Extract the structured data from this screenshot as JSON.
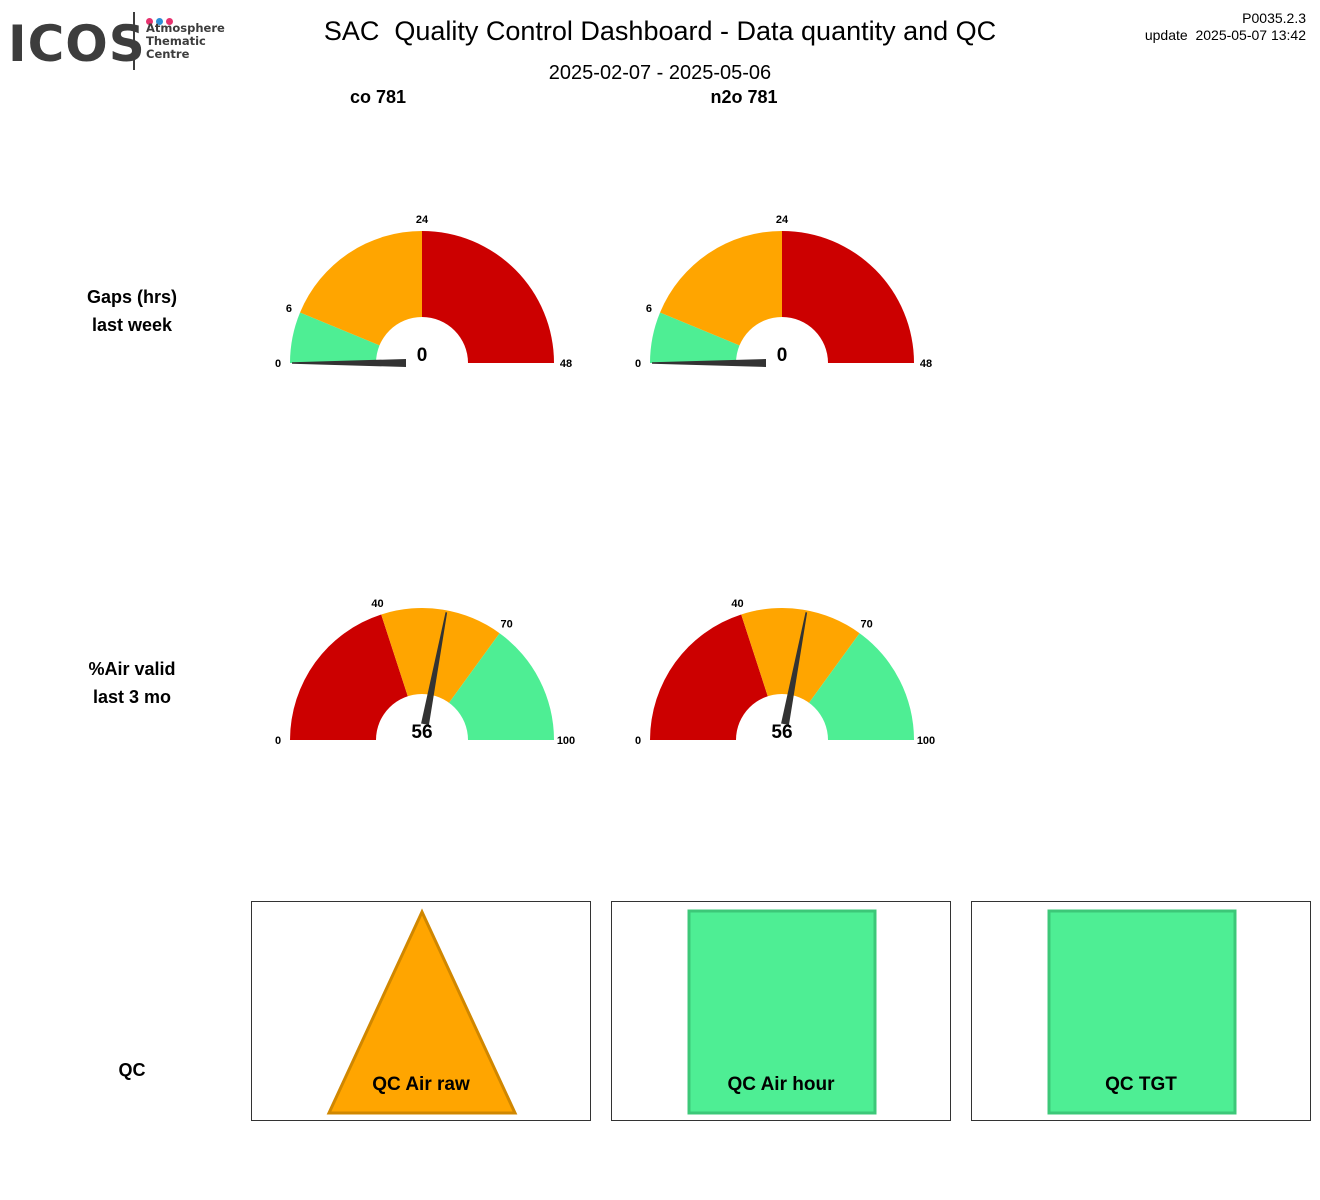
{
  "logo": {
    "word": "ICOS",
    "lines": [
      "Atmosphere",
      "Thematic",
      "Centre"
    ],
    "dot_colors": [
      "#e6326e",
      "#2b8fd6",
      "#e6326e"
    ]
  },
  "header": {
    "title": "SAC  Quality Control Dashboard - Data quantity and QC",
    "date_range": "2025-02-07 - 2025-05-06",
    "version": "P0035.2.3",
    "update": "update  2025-05-07 13:42"
  },
  "columns": [
    "co 781",
    "n2o 781"
  ],
  "rows": {
    "gaps": {
      "label_line1": "Gaps (hrs)",
      "label_line2": "last week"
    },
    "air": {
      "label_line1": "%Air valid",
      "label_line2": "last 3 mo"
    },
    "qc": {
      "label": "QC"
    }
  },
  "colors": {
    "red": "#cc0000",
    "orange": "#ffa500",
    "green": "#4eee94",
    "needle": "#333333"
  },
  "gauges": {
    "gaps": [
      {
        "min": 0,
        "max": 48,
        "value": 0,
        "value_label": "0",
        "ticks": [
          {
            "v": 0,
            "label": "0"
          },
          {
            "v": 6,
            "label": "6"
          },
          {
            "v": 24,
            "label": "24"
          },
          {
            "v": 48,
            "label": "48"
          }
        ],
        "bands": [
          {
            "from": 0,
            "to": 6,
            "color": "green"
          },
          {
            "from": 6,
            "to": 24,
            "color": "orange"
          },
          {
            "from": 24,
            "to": 48,
            "color": "red"
          }
        ]
      },
      {
        "min": 0,
        "max": 48,
        "value": 0,
        "value_label": "0",
        "ticks": [
          {
            "v": 0,
            "label": "0"
          },
          {
            "v": 6,
            "label": "6"
          },
          {
            "v": 24,
            "label": "24"
          },
          {
            "v": 48,
            "label": "48"
          }
        ],
        "bands": [
          {
            "from": 0,
            "to": 6,
            "color": "green"
          },
          {
            "from": 6,
            "to": 24,
            "color": "orange"
          },
          {
            "from": 24,
            "to": 48,
            "color": "red"
          }
        ]
      }
    ],
    "air": [
      {
        "min": 0,
        "max": 100,
        "value": 56,
        "value_label": "56",
        "ticks": [
          {
            "v": 0,
            "label": "0"
          },
          {
            "v": 40,
            "label": "40"
          },
          {
            "v": 70,
            "label": "70"
          },
          {
            "v": 100,
            "label": "100"
          }
        ],
        "bands": [
          {
            "from": 0,
            "to": 40,
            "color": "red"
          },
          {
            "from": 40,
            "to": 70,
            "color": "orange"
          },
          {
            "from": 70,
            "to": 100,
            "color": "green"
          }
        ]
      },
      {
        "min": 0,
        "max": 100,
        "value": 56,
        "value_label": "56",
        "ticks": [
          {
            "v": 0,
            "label": "0"
          },
          {
            "v": 40,
            "label": "40"
          },
          {
            "v": 70,
            "label": "70"
          },
          {
            "v": 100,
            "label": "100"
          }
        ],
        "bands": [
          {
            "from": 0,
            "to": 40,
            "color": "red"
          },
          {
            "from": 40,
            "to": 70,
            "color": "orange"
          },
          {
            "from": 70,
            "to": 100,
            "color": "green"
          }
        ]
      }
    ]
  },
  "qc_panels": [
    {
      "label": "QC Air raw",
      "shape": "triangle",
      "status": "warning",
      "fill": "#ffa500",
      "stroke": "#d08700"
    },
    {
      "label": "QC Air hour",
      "shape": "square",
      "status": "ok",
      "fill": "#4eee94",
      "stroke": "#3cc878"
    },
    {
      "label": "QC TGT",
      "shape": "square",
      "status": "ok",
      "fill": "#4eee94",
      "stroke": "#3cc878"
    }
  ]
}
